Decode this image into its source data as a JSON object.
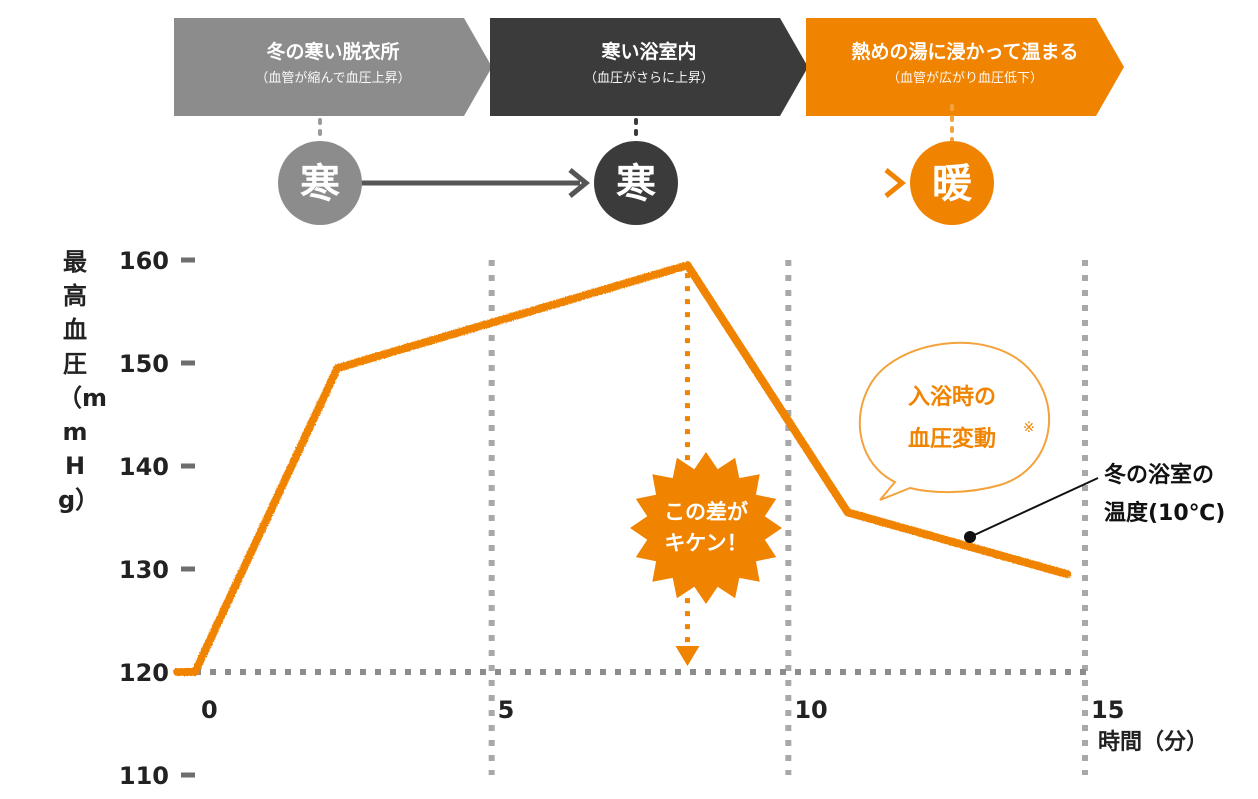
{
  "stages": [
    {
      "title": "冬の寒い脱衣所",
      "note": "（血管が縮んで血圧上昇）",
      "badge": "寒",
      "color": "#8c8c8c"
    },
    {
      "title": "寒い浴室内",
      "note": "（血圧がさらに上昇）",
      "badge": "寒",
      "color": "#3b3b3b"
    },
    {
      "title": "熱めの湯に浸かって温まる",
      "note": "（血管が広がり血圧低下）",
      "badge": "暖",
      "color": "#f08300"
    }
  ],
  "speech_bubble": {
    "line1": "入浴時の",
    "line2": "血圧変動",
    "mark": "※"
  },
  "burst": {
    "line1": "この差が",
    "line2": "キケン！"
  },
  "callout": {
    "line1": "冬の浴室の",
    "line2": "温度(10℃)"
  },
  "chart_data": {
    "type": "line",
    "ylabel": "最高血圧（mmHg）",
    "xlabel": "時間（分）",
    "ylim": [
      110,
      160
    ],
    "xlim": [
      0,
      15
    ],
    "yticks": [
      "110",
      "120",
      "130",
      "140",
      "150",
      "160"
    ],
    "xticks": [
      "0",
      "5",
      "10",
      "15"
    ],
    "grid": true,
    "series": [
      {
        "color": "#f08300",
        "x": [
          -0.3,
          0.0,
          2.4,
          8.3,
          11.0,
          14.7
        ],
        "y": [
          120,
          120,
          149.5,
          159.5,
          135.5,
          129.5
        ]
      }
    ],
    "difference_marker": {
      "x": 8.3,
      "from": 159.5,
      "to": 120
    }
  }
}
